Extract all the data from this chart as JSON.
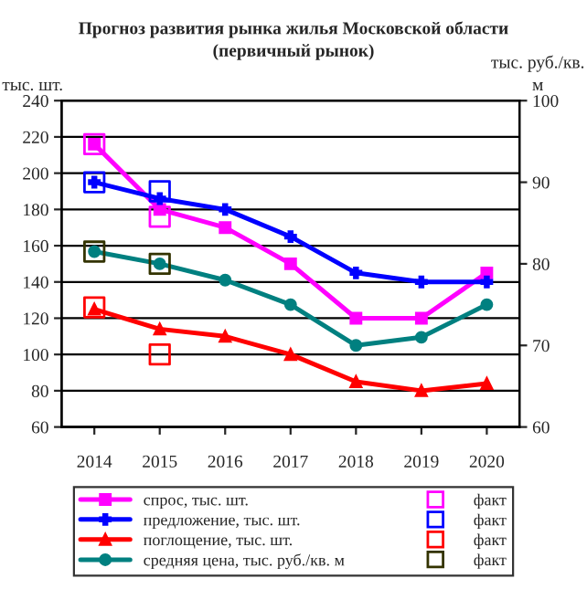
{
  "chart_data": {
    "type": "line",
    "title": "Прогноз развития рынка жилья Московской области\n(первичный рынок)",
    "ylabel": "тыс. шт.",
    "y2label": "тыс. руб./кв.\nм",
    "categories": [
      "2014",
      "2015",
      "2016",
      "2017",
      "2018",
      "2019",
      "2020"
    ],
    "series": [
      {
        "name": "спрос, тыс. шт.",
        "color": "#ff00ff",
        "marker": "square",
        "values": [
          216,
          180,
          170,
          150,
          120,
          120,
          145
        ]
      },
      {
        "name": "предложение, тыс. шт.",
        "color": "#0000ff",
        "marker": "cross",
        "values": [
          195,
          186,
          180,
          165,
          145,
          140,
          140
        ]
      },
      {
        "name": "поглощение, тыс. шт.",
        "color": "#ff0000",
        "marker": "triangle",
        "values": [
          125,
          114,
          110,
          100,
          85,
          80,
          84
        ]
      },
      {
        "name": "средняя цена, тыс. руб./кв. м",
        "color": "#008080",
        "marker": "circle",
        "axis": "y2",
        "values": [
          81.5,
          80,
          78,
          75,
          70,
          71,
          75
        ]
      },
      {
        "name": "факт",
        "type": "scatter",
        "color": "#ff00ff",
        "marker": "square",
        "values": [
          216,
          176,
          null,
          null,
          null,
          null,
          null
        ]
      },
      {
        "name": "факт",
        "type": "scatter",
        "color": "#0000ff",
        "marker": "square",
        "values": [
          195,
          190,
          null,
          null,
          null,
          null,
          null
        ]
      },
      {
        "name": "факт",
        "type": "scatter",
        "color": "#ff0000",
        "marker": "square",
        "values": [
          126,
          100,
          null,
          null,
          null,
          null,
          null
        ]
      },
      {
        "name": "факт",
        "type": "scatter",
        "color": "#333300",
        "marker": "square",
        "axis": "y2",
        "values": [
          81.5,
          80,
          null,
          null,
          null,
          null,
          null
        ]
      }
    ],
    "ylim": [
      60,
      240
    ],
    "yticks": [
      60,
      80,
      100,
      120,
      140,
      160,
      180,
      200,
      220,
      240
    ],
    "y2lim": [
      60,
      100
    ],
    "y2ticks": [
      60,
      70,
      80,
      90,
      100
    ],
    "grid": "y",
    "legend": "bottom"
  }
}
